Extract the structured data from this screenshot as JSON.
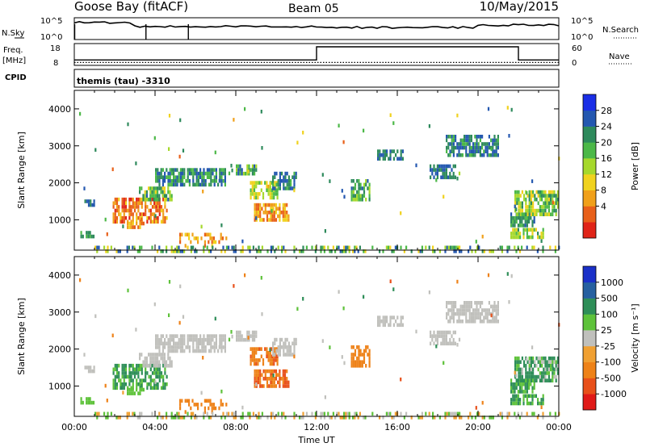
{
  "header": {
    "station": "Goose Bay (fitACF)",
    "beam": "Beam 05",
    "date": "10/May/2015"
  },
  "strips": {
    "nsky_label": "N.Sky",
    "nsearch_label": "N.Search",
    "log_ticks_left": [
      "10^5",
      "10^0"
    ],
    "log_ticks_right": [
      "10^5",
      "10^0"
    ],
    "freq_label_1": "Freq.",
    "freq_label_2": "[MHz]",
    "freq_ticks": [
      "18",
      "8"
    ],
    "nave_label": "Nave",
    "nave_ticks": [
      "60",
      "0"
    ],
    "cpid_label": "CPID",
    "cpid_text": "themis (tau) -3310"
  },
  "axes": {
    "ylabel": "Slant Range [km]",
    "xlabel": "Time UT",
    "range_ticks": [
      "1000",
      "2000",
      "3000",
      "4000"
    ],
    "time_ticks": [
      "00:00",
      "04:00",
      "08:00",
      "12:00",
      "16:00",
      "20:00",
      "00:00"
    ]
  },
  "colorbars": {
    "power": {
      "label": "Power [dB]",
      "ticks": [
        "28",
        "24",
        "20",
        "16",
        "12",
        "8",
        "4"
      ],
      "colors": [
        "#1a2ee6",
        "#2458b0",
        "#2e8a5c",
        "#4cb848",
        "#a6d82c",
        "#f0d21e",
        "#f0a01a",
        "#e8601a",
        "#e02418"
      ]
    },
    "velocity": {
      "label": "Velocity [m s⁻¹]",
      "ticks": [
        "1000",
        "500",
        "100",
        "25",
        "-25",
        "-100",
        "-500",
        "-1000"
      ],
      "colors": [
        "#1a30c8",
        "#2660a0",
        "#2e8e58",
        "#5ec23a",
        "#c0c0bc",
        "#f0a032",
        "#ee8218",
        "#e8501a",
        "#e01a18"
      ]
    }
  },
  "chart_data": {
    "type": "heatmap",
    "x_range_hours": [
      0,
      24
    ],
    "range_limits_km": [
      180,
      4500
    ],
    "power_regions": [
      {
        "t": [
          0.3,
          1.0
        ],
        "r": [
          580,
          700
        ],
        "power_db": [
          6,
          12
        ]
      },
      {
        "t": [
          0.5,
          1.0
        ],
        "r": [
          1350,
          1550
        ],
        "power_db": [
          4,
          10
        ]
      },
      {
        "t": [
          1.9,
          4.6
        ],
        "r": [
          950,
          1600
        ],
        "power_db": [
          20,
          30
        ]
      },
      {
        "t": [
          2.6,
          3.4
        ],
        "r": [
          750,
          950
        ],
        "power_db": [
          18,
          28
        ]
      },
      {
        "t": [
          3.2,
          4.8
        ],
        "r": [
          1500,
          1900
        ],
        "power_db": [
          6,
          20
        ]
      },
      {
        "t": [
          4.0,
          7.5
        ],
        "r": [
          1900,
          2400
        ],
        "power_db": [
          4,
          14
        ]
      },
      {
        "t": [
          5.2,
          7.6
        ],
        "r": [
          330,
          650
        ],
        "power_db": [
          18,
          28
        ]
      },
      {
        "t": [
          8.0,
          9.0
        ],
        "r": [
          2200,
          2500
        ],
        "power_db": [
          6,
          16
        ]
      },
      {
        "t": [
          8.9,
          10.6
        ],
        "r": [
          1000,
          1450
        ],
        "power_db": [
          18,
          28
        ]
      },
      {
        "t": [
          8.7,
          10.1
        ],
        "r": [
          1600,
          2050
        ],
        "power_db": [
          12,
          22
        ]
      },
      {
        "t": [
          9.8,
          11.0
        ],
        "r": [
          1800,
          2300
        ],
        "power_db": [
          4,
          12
        ]
      },
      {
        "t": [
          13.7,
          14.6
        ],
        "r": [
          1500,
          2100
        ],
        "power_db": [
          6,
          16
        ]
      },
      {
        "t": [
          15.0,
          16.3
        ],
        "r": [
          2600,
          2900
        ],
        "power_db": [
          4,
          10
        ]
      },
      {
        "t": [
          17.6,
          18.9
        ],
        "r": [
          2100,
          2500
        ],
        "power_db": [
          4,
          10
        ]
      },
      {
        "t": [
          18.4,
          21.0
        ],
        "r": [
          2700,
          3300
        ],
        "power_db": [
          4,
          12
        ]
      },
      {
        "t": [
          21.6,
          22.8
        ],
        "r": [
          800,
          1200
        ],
        "power_db": [
          6,
          14
        ]
      },
      {
        "t": [
          21.8,
          24.0
        ],
        "r": [
          1100,
          1800
        ],
        "power_db": [
          8,
          20
        ]
      },
      {
        "t": [
          21.6,
          23.2
        ],
        "r": [
          550,
          780
        ],
        "power_db": [
          10,
          20
        ]
      },
      {
        "t": [
          1.0,
          24.0
        ],
        "r": [
          180,
          300
        ],
        "power_db": [
          4,
          20
        ]
      }
    ],
    "velocity_regions": [
      {
        "t": [
          0.3,
          1.0
        ],
        "r": [
          580,
          700
        ],
        "vel": [
          25,
          100
        ]
      },
      {
        "t": [
          0.5,
          1.0
        ],
        "r": [
          1350,
          1550
        ],
        "vel": [
          -25,
          25
        ]
      },
      {
        "t": [
          1.9,
          4.6
        ],
        "r": [
          950,
          1600
        ],
        "vel": [
          25,
          200
        ]
      },
      {
        "t": [
          2.6,
          3.4
        ],
        "r": [
          750,
          950
        ],
        "vel": [
          25,
          100
        ]
      },
      {
        "t": [
          3.2,
          4.8
        ],
        "r": [
          1500,
          1900
        ],
        "vel": [
          -25,
          25
        ]
      },
      {
        "t": [
          4.0,
          7.5
        ],
        "r": [
          1900,
          2400
        ],
        "vel": [
          -25,
          25
        ]
      },
      {
        "t": [
          5.2,
          7.6
        ],
        "r": [
          330,
          650
        ],
        "vel": [
          -500,
          -100
        ]
      },
      {
        "t": [
          8.0,
          9.0
        ],
        "r": [
          2200,
          2500
        ],
        "vel": [
          -25,
          25
        ]
      },
      {
        "t": [
          8.9,
          10.6
        ],
        "r": [
          1000,
          1450
        ],
        "vel": [
          -800,
          -200
        ]
      },
      {
        "t": [
          8.7,
          10.1
        ],
        "r": [
          1600,
          2050
        ],
        "vel": [
          -600,
          -100
        ]
      },
      {
        "t": [
          9.8,
          11.0
        ],
        "r": [
          1800,
          2300
        ],
        "vel": [
          -25,
          25
        ]
      },
      {
        "t": [
          13.7,
          14.6
        ],
        "r": [
          1500,
          2100
        ],
        "vel": [
          -400,
          -100
        ]
      },
      {
        "t": [
          15.0,
          16.3
        ],
        "r": [
          2600,
          2900
        ],
        "vel": [
          -25,
          25
        ]
      },
      {
        "t": [
          17.6,
          18.9
        ],
        "r": [
          2100,
          2500
        ],
        "vel": [
          -25,
          25
        ]
      },
      {
        "t": [
          18.4,
          21.0
        ],
        "r": [
          2700,
          3300
        ],
        "vel": [
          -25,
          25
        ]
      },
      {
        "t": [
          21.6,
          22.8
        ],
        "r": [
          800,
          1200
        ],
        "vel": [
          25,
          200
        ]
      },
      {
        "t": [
          21.8,
          24.0
        ],
        "r": [
          1100,
          1800
        ],
        "vel": [
          -25,
          300
        ]
      },
      {
        "t": [
          21.6,
          23.2
        ],
        "r": [
          550,
          780
        ],
        "vel": [
          25,
          150
        ]
      },
      {
        "t": [
          1.0,
          24.0
        ],
        "r": [
          180,
          300
        ],
        "vel": [
          -100,
          100
        ]
      }
    ],
    "frequency_mhz_segments": [
      {
        "t": [
          0,
          12.0
        ],
        "value": 10.5
      },
      {
        "t": [
          12.0,
          22.0
        ],
        "value": 16.5
      },
      {
        "t": [
          22.0,
          24.0
        ],
        "value": 10.5
      }
    ],
    "nave_approx": 8,
    "nsky_dips_hours": [
      0.02,
      3.55,
      5.65
    ]
  }
}
